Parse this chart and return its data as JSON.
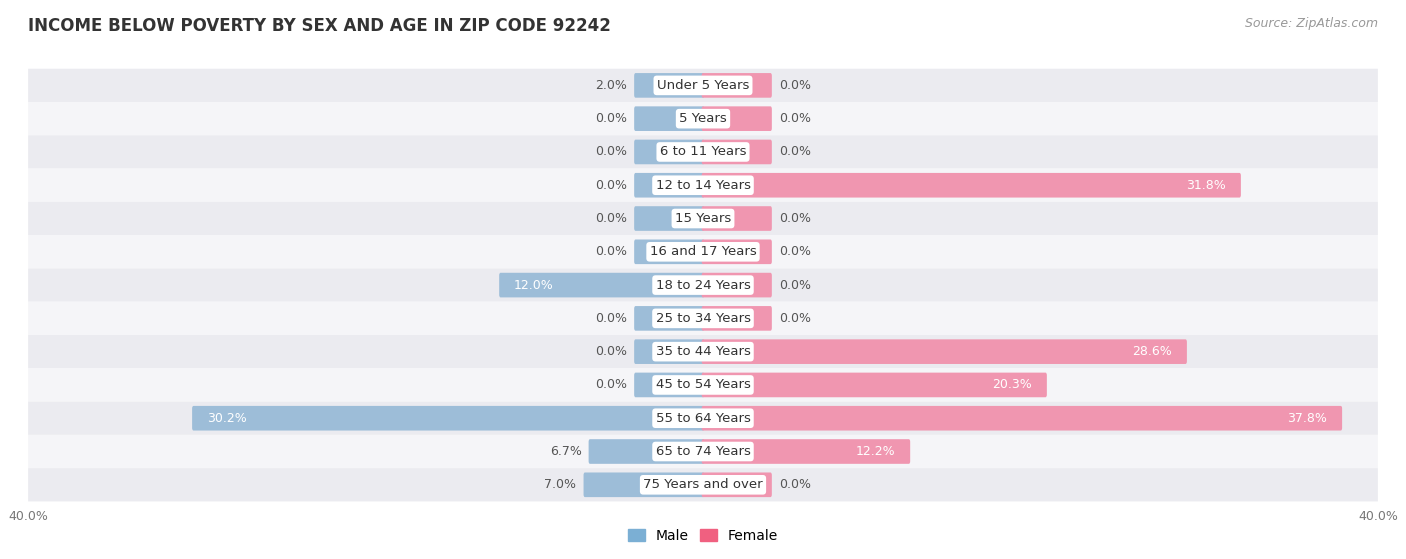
{
  "title": "INCOME BELOW POVERTY BY SEX AND AGE IN ZIP CODE 92242",
  "source": "Source: ZipAtlas.com",
  "categories": [
    "Under 5 Years",
    "5 Years",
    "6 to 11 Years",
    "12 to 14 Years",
    "15 Years",
    "16 and 17 Years",
    "18 to 24 Years",
    "25 to 34 Years",
    "35 to 44 Years",
    "45 to 54 Years",
    "55 to 64 Years",
    "65 to 74 Years",
    "75 Years and over"
  ],
  "male": [
    2.0,
    0.0,
    0.0,
    0.0,
    0.0,
    0.0,
    12.0,
    0.0,
    0.0,
    0.0,
    30.2,
    6.7,
    7.0
  ],
  "female": [
    0.0,
    0.0,
    0.0,
    31.8,
    0.0,
    0.0,
    0.0,
    0.0,
    28.6,
    20.3,
    37.8,
    12.2,
    0.0
  ],
  "male_color": "#9dbdd8",
  "female_color": "#f096b0",
  "row_bg_even": "#ebebf0",
  "row_bg_odd": "#f5f5f8",
  "axis_limit": 40.0,
  "min_bar": 4.0,
  "title_fontsize": 12,
  "source_fontsize": 9,
  "label_fontsize": 9,
  "category_fontsize": 9.5,
  "legend_male_color": "#7bafd4",
  "legend_female_color": "#f06080",
  "label_inside_threshold": 8.0
}
